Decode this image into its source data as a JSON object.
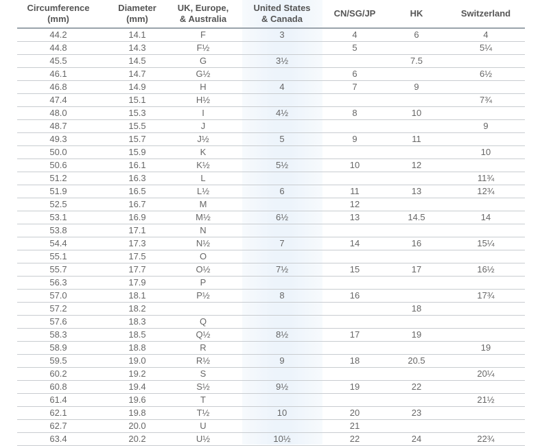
{
  "colors": {
    "us_column_shade": "#edf4fb",
    "text": "#666666",
    "rule": "#c8ccd0"
  },
  "headers": [
    "Circumference\n(mm)",
    "Diameter\n(mm)",
    "UK, Europe,\n& Australia",
    "United States\n& Canada",
    "CN/SG/JP",
    "HK",
    "Switzerland"
  ],
  "rows": [
    [
      "44.2",
      "14.1",
      "F",
      "3",
      "4",
      "6",
      "4"
    ],
    [
      "44.8",
      "14.3",
      "F½",
      "",
      "5",
      "",
      "5¼"
    ],
    [
      "45.5",
      "14.5",
      "G",
      "3½",
      "",
      "7.5",
      ""
    ],
    [
      "46.1",
      "14.7",
      "G½",
      "",
      "6",
      "",
      "6½"
    ],
    [
      "46.8",
      "14.9",
      "H",
      "4",
      "7",
      "9",
      ""
    ],
    [
      "47.4",
      "15.1",
      "H½",
      "",
      "",
      "",
      "7¾"
    ],
    [
      "48.0",
      "15.3",
      "I",
      "4½",
      "8",
      "10",
      ""
    ],
    [
      "48.7",
      "15.5",
      "J",
      "",
      "",
      "",
      "9"
    ],
    [
      "49.3",
      "15.7",
      "J½",
      "5",
      "9",
      "11",
      ""
    ],
    [
      "50.0",
      "15.9",
      "K",
      "",
      "",
      "",
      "10"
    ],
    [
      "50.6",
      "16.1",
      "K½",
      "5½",
      "10",
      "12",
      ""
    ],
    [
      "51.2",
      "16.3",
      "L",
      "",
      "",
      "",
      "11¾"
    ],
    [
      "51.9",
      "16.5",
      "L½",
      "6",
      "11",
      "13",
      "12¾"
    ],
    [
      "52.5",
      "16.7",
      "M",
      "",
      "12",
      "",
      ""
    ],
    [
      "53.1",
      "16.9",
      "M½",
      "6½",
      "13",
      "14.5",
      "14"
    ],
    [
      "53.8",
      "17.1",
      "N",
      "",
      "",
      "",
      ""
    ],
    [
      "54.4",
      "17.3",
      "N½",
      "7",
      "14",
      "16",
      "15¼"
    ],
    [
      "55.1",
      "17.5",
      "O",
      "",
      "",
      "",
      ""
    ],
    [
      "55.7",
      "17.7",
      "O½",
      "7½",
      "15",
      "17",
      "16½"
    ],
    [
      "56.3",
      "17.9",
      "P",
      "",
      "",
      "",
      ""
    ],
    [
      "57.0",
      "18.1",
      "P½",
      "8",
      "16",
      "",
      "17¾"
    ],
    [
      "57.2",
      "18.2",
      "",
      "",
      "",
      "18",
      ""
    ],
    [
      "57.6",
      "18.3",
      "Q",
      "",
      "",
      "",
      ""
    ],
    [
      "58.3",
      "18.5",
      "Q½",
      "8½",
      "17",
      "19",
      ""
    ],
    [
      "58.9",
      "18.8",
      "R",
      "",
      "",
      "",
      "19"
    ],
    [
      "59.5",
      "19.0",
      "R½",
      "9",
      "18",
      "20.5",
      ""
    ],
    [
      "60.2",
      "19.2",
      "S",
      "",
      "",
      "",
      "20¼"
    ],
    [
      "60.8",
      "19.4",
      "S½",
      "9½",
      "19",
      "22",
      ""
    ],
    [
      "61.4",
      "19.6",
      "T",
      "",
      "",
      "",
      "21½"
    ],
    [
      "62.1",
      "19.8",
      "T½",
      "10",
      "20",
      "23",
      ""
    ],
    [
      "62.7",
      "20.0",
      "U",
      "",
      "21",
      "",
      ""
    ],
    [
      "63.4",
      "20.2",
      "U½",
      "10½",
      "22",
      "24",
      "22¾"
    ]
  ]
}
